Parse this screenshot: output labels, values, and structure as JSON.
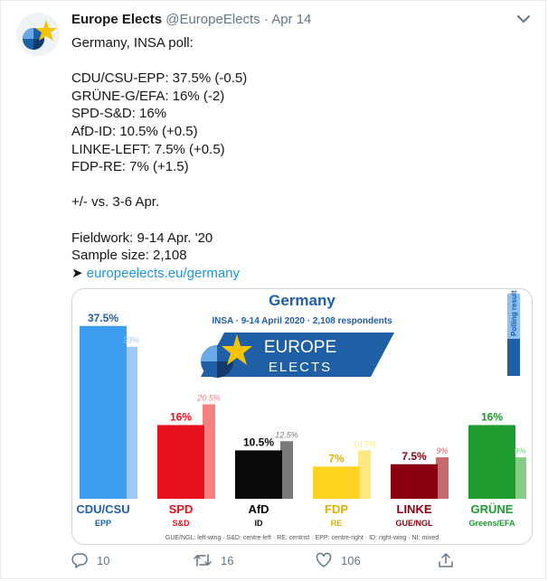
{
  "tweet": {
    "author_name": "Europe Elects",
    "handle": "@EuropeElects",
    "separator": "·",
    "date": "Apr 14",
    "lines": [
      "Germany, INSA poll:",
      "",
      "CDU/CSU-EPP: 37.5% (-0.5)",
      "GRÜNE-G/EFA: 16% (-2)",
      "SPD-S&D: 16%",
      "AfD-ID: 10.5% (+0.5)",
      "LINKE-LEFT: 7.5% (+0.5)",
      "FDP-RE: 7% (+1.5)",
      "",
      "+/- vs. 3-6 Apr.",
      "",
      "Fieldwork: 9-14 Apr. '20",
      "Sample size: 2,108"
    ],
    "link_arrow": "➤",
    "link_text": "europeelects.eu/germany"
  },
  "actions": {
    "reply_count": "10",
    "retweet_count": "16",
    "like_count": "106"
  },
  "icons": {
    "avatar": "europe-elects-logo-icon",
    "more": "chevron-down-icon",
    "reply": "reply-icon",
    "retweet": "retweet-icon",
    "like": "heart-icon",
    "share": "share-icon"
  },
  "chart": {
    "title": "Germany",
    "subtitle": "INSA · 9-14 April 2020 · 2,108 respondents",
    "banner_line1": "EUROPE",
    "banner_line2": "ELECTS",
    "legend_text": "Polling result",
    "footer": "GUE/NGL: left-wing · S&D: centre-left · RE: centrist · EPP: centre-right · ID: right-wing · NI: mixed",
    "colors": {
      "title": "#1f5fa6",
      "banner": "#1f5fa6",
      "legend_dark": "#1f5fa6",
      "legend_light": "#8cc0f0"
    }
  },
  "chart_data": {
    "type": "bar",
    "ylim": [
      0,
      40
    ],
    "categories": [
      "CDU/CSU",
      "SPD",
      "AfD",
      "FDP",
      "LINKE",
      "GRÜNE"
    ],
    "groups": [
      "EPP",
      "S&D",
      "ID",
      "RE",
      "GUE/NGL",
      "Greens/EFA"
    ],
    "series": [
      {
        "values": [
          37.5,
          16,
          10.5,
          7,
          7.5,
          16
        ],
        "labels": [
          "37.5%",
          "16%",
          "10.5%",
          "7%",
          "7.5%",
          "16%"
        ]
      },
      {
        "values": [
          33,
          20.5,
          12.5,
          10.5,
          9,
          9
        ],
        "labels": [
          "33%",
          "20.5%",
          "12.5%",
          "10.5%",
          "9%",
          "9%"
        ]
      }
    ],
    "colors": [
      "#3d9df0",
      "#e8121f",
      "#0a0a0a",
      "#ffd21f",
      "#8a0012",
      "#1e9c2e"
    ],
    "light_colors": [
      "#9ccaf5",
      "#f48080",
      "#7a7a7a",
      "#ffe880",
      "#c66a72",
      "#86cc88"
    ],
    "label_colors": [
      "#1f5fa6",
      "#e8121f",
      "#0a0a0a",
      "#e0b000",
      "#8a0012",
      "#1e9c2e"
    ]
  }
}
